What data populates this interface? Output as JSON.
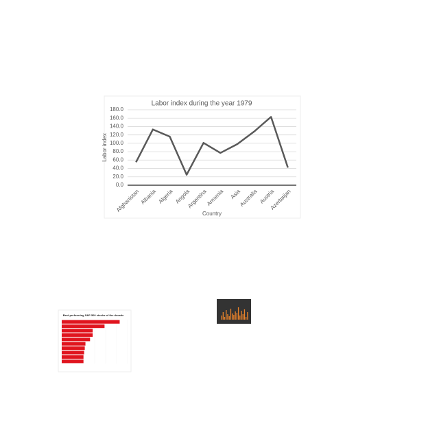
{
  "chart_data": [
    {
      "type": "line",
      "title": "Labor index during the year 1979",
      "x_label": "Country",
      "y_label": "Labor index",
      "categories": [
        "Afghanistan",
        "Albania",
        "Algeria",
        "Angola",
        "Argentina",
        "Armenia",
        "Asia",
        "Australia",
        "Austria",
        "Azerbaijan"
      ],
      "values": [
        55,
        133,
        116,
        25,
        101,
        77,
        98,
        128,
        163,
        42
      ],
      "color": "#595959",
      "ylim": [
        0,
        180
      ],
      "yticks": [
        {
          "value": 0,
          "label": "0.0"
        },
        {
          "value": 20,
          "label": "20.0"
        },
        {
          "value": 40,
          "label": "40.0"
        },
        {
          "value": 60,
          "label": "60.0"
        },
        {
          "value": 80,
          "label": "80.0"
        },
        {
          "value": 100,
          "label": "100.0"
        },
        {
          "value": 120,
          "label": "120.0"
        },
        {
          "value": 140,
          "label": "140.0"
        },
        {
          "value": 160,
          "label": "160.0"
        },
        {
          "value": 180,
          "label": "180.0"
        }
      ],
      "grid": true
    },
    {
      "type": "hbar",
      "title": "Best performing S&P 500 stocks of the decade",
      "values": [
        88,
        65,
        47,
        47,
        43,
        36,
        35,
        34,
        33,
        33
      ],
      "color": "#e0141e",
      "xlim": [
        0,
        100
      ]
    },
    {
      "type": "vbar",
      "values": [
        30,
        55,
        20,
        70,
        40,
        25,
        80,
        45,
        35,
        60,
        50,
        90,
        30,
        65,
        40,
        75,
        20,
        55
      ],
      "color": "#e8822a",
      "background": "#333333",
      "ylim": [
        0,
        100
      ]
    }
  ]
}
